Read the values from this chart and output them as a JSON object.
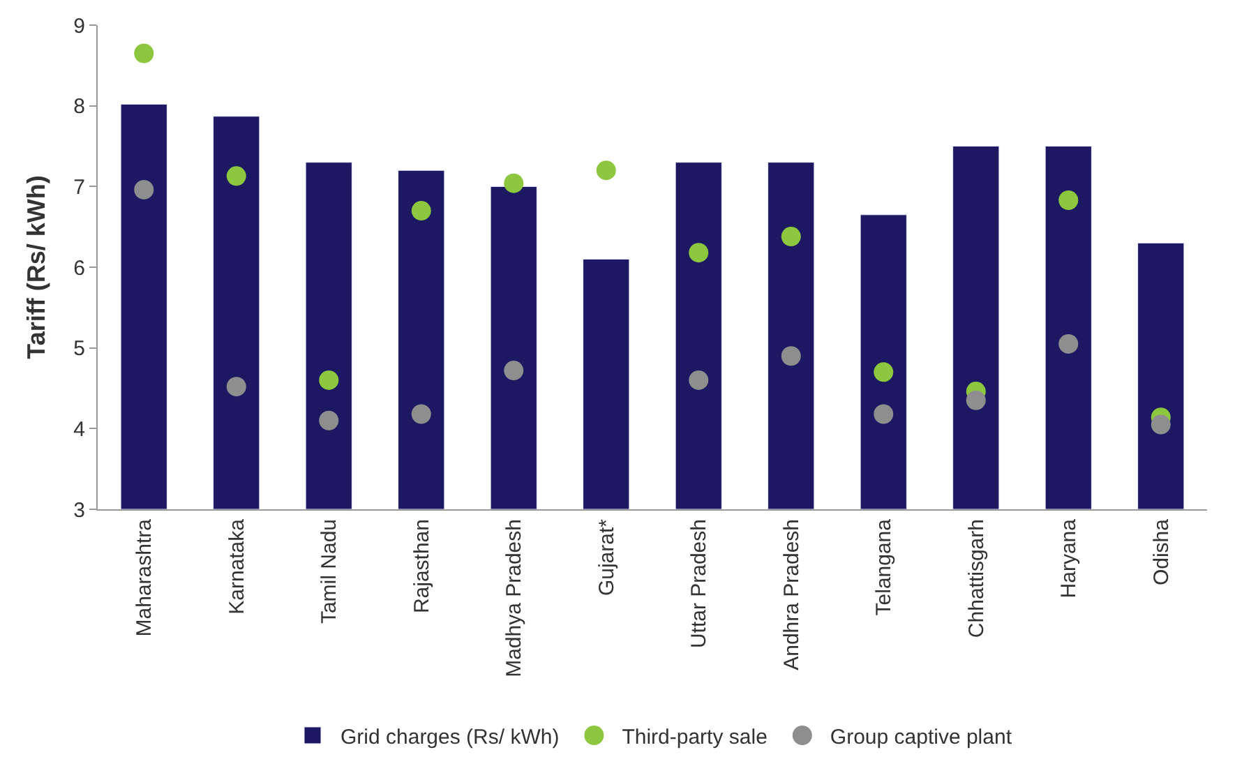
{
  "chart_data": {
    "type": "bar",
    "ylabel": "Tariff (Rs/ kWh)",
    "categories": [
      "Maharashtra",
      "Karnataka",
      "Tamil Nadu",
      "Rajasthan",
      "Madhya Pradesh",
      "Gujarat*",
      "Uttar Pradesh",
      "Andhra Pradesh",
      "Telangana",
      "Chhattisgarh",
      "Haryana",
      "Odisha"
    ],
    "series": [
      {
        "name": "Grid charges (Rs/ kWh)",
        "color": "#1c1862",
        "values": [
          8.02,
          7.87,
          7.3,
          7.2,
          7.0,
          6.1,
          7.3,
          7.3,
          6.65,
          7.5,
          7.5,
          6.3
        ]
      },
      {
        "name": "Third-party sale",
        "type": "scatter",
        "color": "#8dc63f",
        "values": [
          8.65,
          7.13,
          4.6,
          6.7,
          7.04,
          7.2,
          6.18,
          6.38,
          4.7,
          4.46,
          6.83,
          4.14
        ]
      },
      {
        "name": "Group captive plant",
        "type": "scatter",
        "color": "#8e8e8e",
        "values": [
          6.96,
          4.52,
          4.1,
          4.18,
          4.72,
          null,
          4.6,
          4.9,
          4.18,
          4.35,
          5.05,
          4.05
        ]
      }
    ],
    "ylim": [
      3,
      9
    ],
    "yticks": [
      3,
      4,
      5,
      6,
      7,
      8,
      9
    ],
    "legend": "bottom",
    "marker": "circle"
  }
}
